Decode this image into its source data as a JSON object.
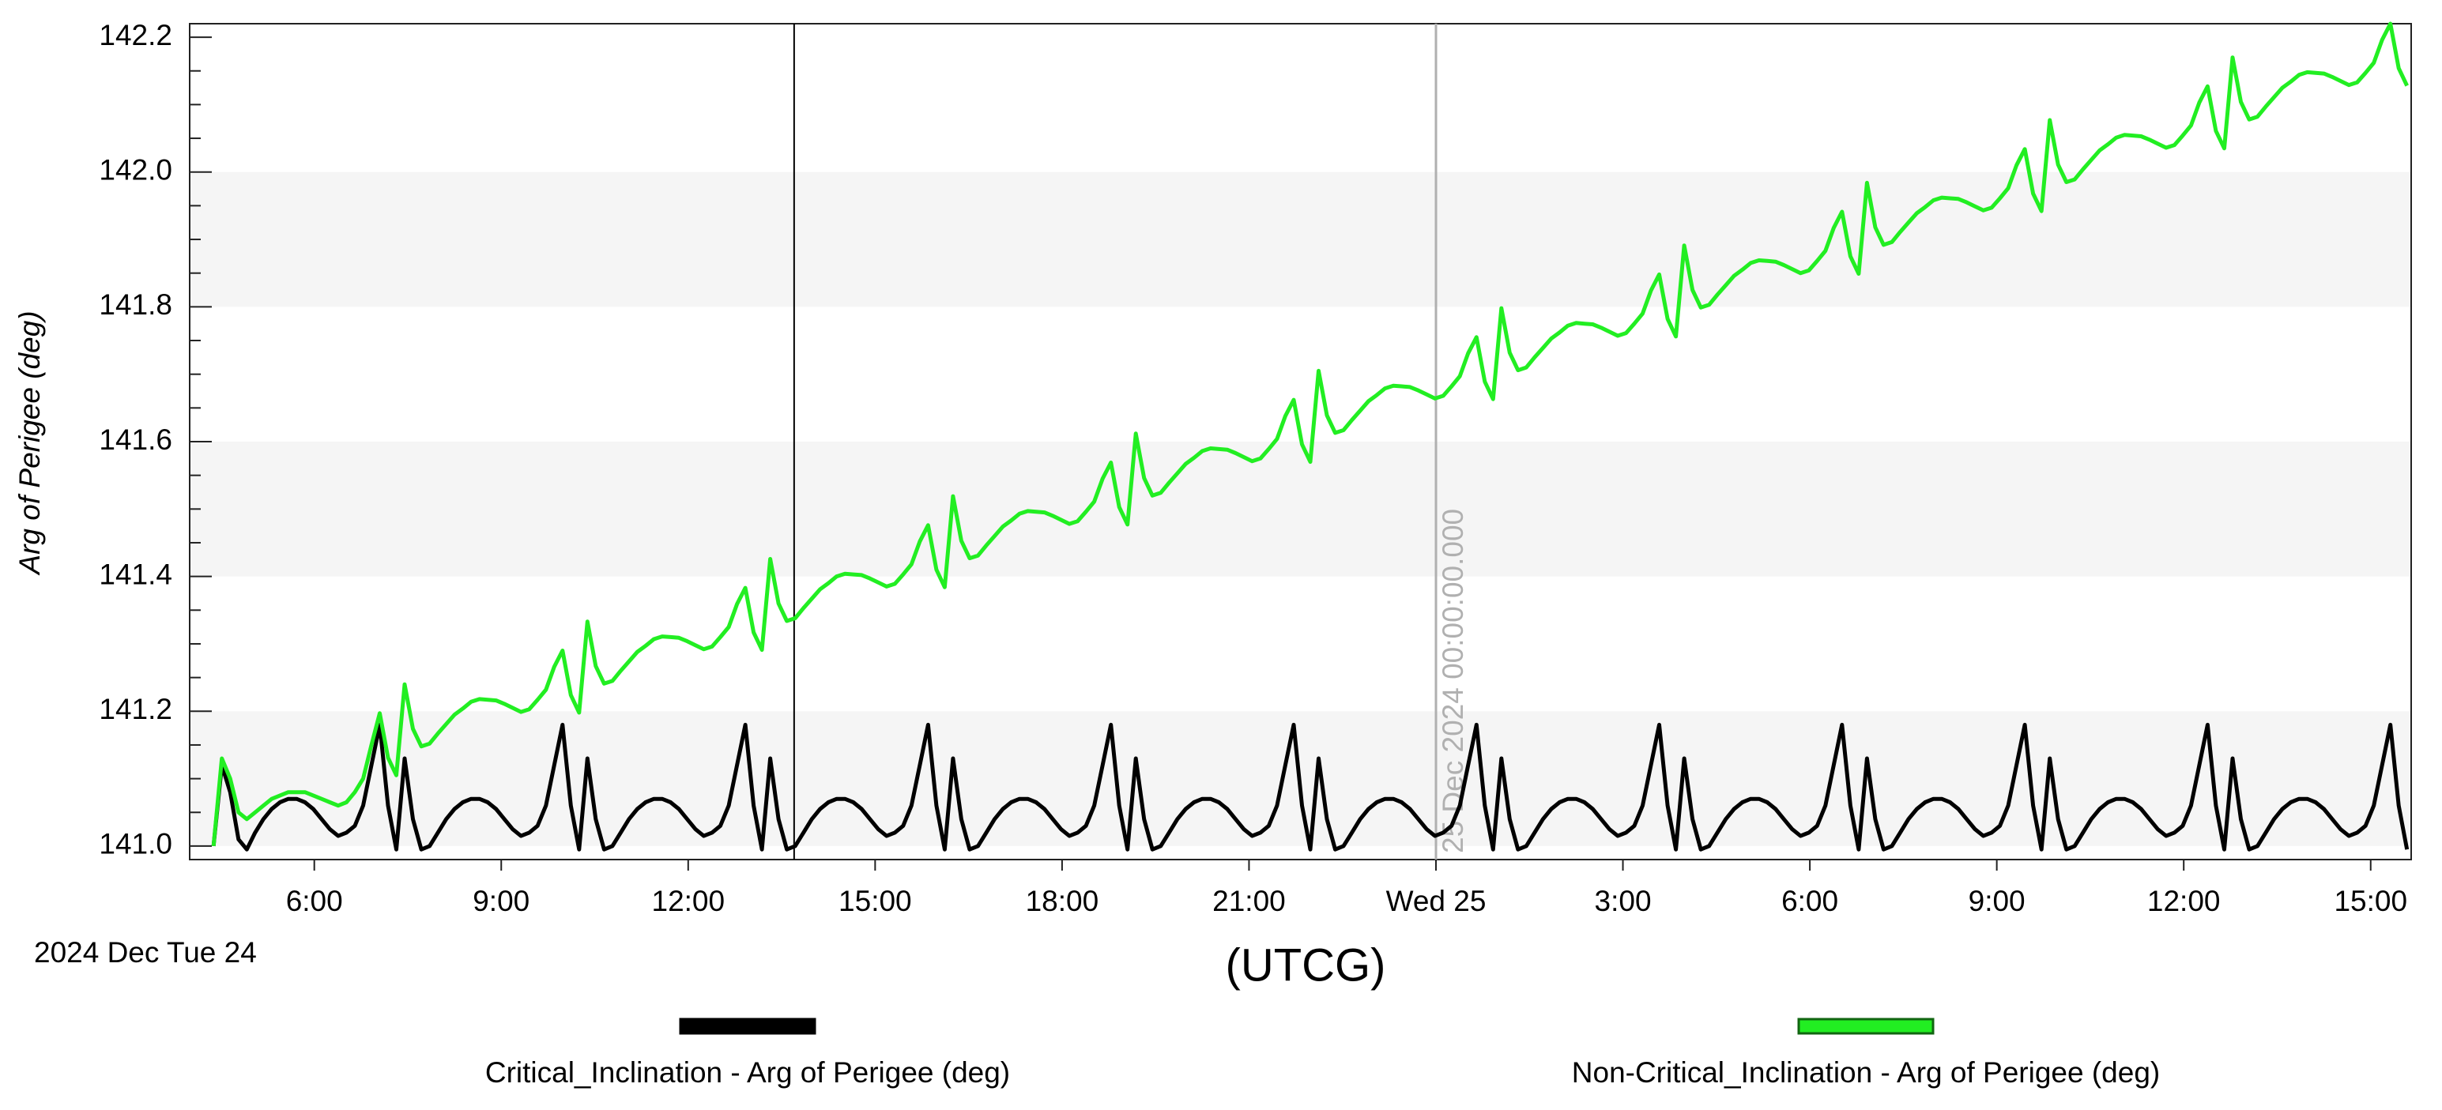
{
  "chart_data": {
    "type": "line",
    "y_label": "Arg of Perigee (deg)",
    "x_label": "(UTCG)",
    "x_date_label": "2024 Dec Tue 24",
    "xlim": [
      "2024-12-24T04:00",
      "2024-12-25T15:39"
    ],
    "xticks": [
      {
        "value": "2024-12-24T06:00",
        "label": "6:00"
      },
      {
        "value": "2024-12-24T09:00",
        "label": "9:00"
      },
      {
        "value": "2024-12-24T12:00",
        "label": "12:00"
      },
      {
        "value": "2024-12-24T15:00",
        "label": "15:00"
      },
      {
        "value": "2024-12-24T18:00",
        "label": "18:00"
      },
      {
        "value": "2024-12-24T21:00",
        "label": "21:00"
      },
      {
        "value": "2024-12-25T00:00",
        "label": "Wed 25"
      },
      {
        "value": "2024-12-25T03:00",
        "label": "3:00"
      },
      {
        "value": "2024-12-25T06:00",
        "label": "6:00"
      },
      {
        "value": "2024-12-25T09:00",
        "label": "9:00"
      },
      {
        "value": "2024-12-25T12:00",
        "label": "12:00"
      },
      {
        "value": "2024-12-25T15:00",
        "label": "15:00"
      }
    ],
    "ylim": [
      140.98,
      142.22
    ],
    "yticks": [
      {
        "value": 141,
        "label": "141.0"
      },
      141.2,
      141.4,
      141.6,
      141.8,
      {
        "value": 142,
        "label": "142.0"
      },
      142.2
    ],
    "yticks_minor": [
      141.05,
      141.1,
      141.15,
      141.25,
      141.3,
      141.35,
      141.45,
      141.5,
      141.55,
      141.65,
      141.7,
      141.75,
      141.85,
      141.9,
      141.95,
      142.05,
      142.1,
      142.15
    ],
    "grid_bands": true,
    "cursor_x": "2024-12-24T13:42",
    "annotations": [
      {
        "x": "2024-12-25T00:00",
        "label": "25 Dec 2024 00:00:00.000"
      }
    ],
    "legend": "bottom",
    "x": [
      "2024-12-24T04:23",
      "2024-12-24T04:31",
      "2024-12-24T04:39",
      "2024-12-24T04:47",
      "2024-12-24T04:55",
      "2024-12-24T05:03",
      "2024-12-24T05:11",
      "2024-12-24T05:19",
      "2024-12-24T05:27",
      "2024-12-24T05:35",
      "2024-12-24T05:43",
      "2024-12-24T05:51",
      "2024-12-24T05:59",
      "2024-12-24T06:07",
      "2024-12-24T06:15",
      "2024-12-24T06:23",
      "2024-12-24T06:31",
      "2024-12-24T06:39",
      "2024-12-24T06:47",
      "2024-12-24T06:55",
      "2024-12-24T07:03",
      "2024-12-24T07:11",
      "2024-12-24T07:19",
      "2024-12-24T07:27",
      "2024-12-24T07:35",
      "2024-12-24T07:43",
      "2024-12-24T07:51",
      "2024-12-24T07:59",
      "2024-12-24T08:07",
      "2024-12-24T08:15",
      "2024-12-24T08:23",
      "2024-12-24T08:31",
      "2024-12-24T08:39",
      "2024-12-24T08:47",
      "2024-12-24T08:55",
      "2024-12-24T09:03",
      "2024-12-24T09:11",
      "2024-12-24T09:19",
      "2024-12-24T09:27",
      "2024-12-24T09:35",
      "2024-12-24T09:43",
      "2024-12-24T09:51",
      "2024-12-24T09:59",
      "2024-12-24T10:07",
      "2024-12-24T10:15",
      "2024-12-24T10:23",
      "2024-12-24T10:31",
      "2024-12-24T10:39",
      "2024-12-24T10:47",
      "2024-12-24T10:55",
      "2024-12-24T11:03",
      "2024-12-24T11:11",
      "2024-12-24T11:19",
      "2024-12-24T11:27",
      "2024-12-24T11:35",
      "2024-12-24T11:43",
      "2024-12-24T11:51",
      "2024-12-24T11:59",
      "2024-12-24T12:07",
      "2024-12-24T12:15",
      "2024-12-24T12:23",
      "2024-12-24T12:31",
      "2024-12-24T12:39",
      "2024-12-24T12:47",
      "2024-12-24T12:55",
      "2024-12-24T13:03",
      "2024-12-24T13:11",
      "2024-12-24T13:19",
      "2024-12-24T13:27",
      "2024-12-24T13:35",
      "2024-12-24T13:43",
      "2024-12-24T13:51",
      "2024-12-24T13:59",
      "2024-12-24T14:07",
      "2024-12-24T14:15",
      "2024-12-24T14:23",
      "2024-12-24T14:31",
      "2024-12-24T14:39",
      "2024-12-24T14:47",
      "2024-12-24T14:55",
      "2024-12-24T15:03",
      "2024-12-24T15:11",
      "2024-12-24T15:19",
      "2024-12-24T15:27",
      "2024-12-24T15:35",
      "2024-12-24T15:43",
      "2024-12-24T15:51",
      "2024-12-24T15:59",
      "2024-12-24T16:07",
      "2024-12-24T16:15",
      "2024-12-24T16:23",
      "2024-12-24T16:31",
      "2024-12-24T16:39",
      "2024-12-24T16:47",
      "2024-12-24T16:55",
      "2024-12-24T17:03",
      "2024-12-24T17:11",
      "2024-12-24T17:19",
      "2024-12-24T17:27",
      "2024-12-24T17:35",
      "2024-12-24T17:43",
      "2024-12-24T17:51",
      "2024-12-24T17:59",
      "2024-12-24T18:07",
      "2024-12-24T18:15",
      "2024-12-24T18:23",
      "2024-12-24T18:31",
      "2024-12-24T18:39",
      "2024-12-24T18:47",
      "2024-12-24T18:55",
      "2024-12-24T19:03",
      "2024-12-24T19:11",
      "2024-12-24T19:19",
      "2024-12-24T19:27",
      "2024-12-24T19:35",
      "2024-12-24T19:43",
      "2024-12-24T19:51",
      "2024-12-24T19:59",
      "2024-12-24T20:07",
      "2024-12-24T20:15",
      "2024-12-24T20:23",
      "2024-12-24T20:31",
      "2024-12-24T20:39",
      "2024-12-24T20:47",
      "2024-12-24T20:55",
      "2024-12-24T21:03",
      "2024-12-24T21:11",
      "2024-12-24T21:19",
      "2024-12-24T21:27",
      "2024-12-24T21:35",
      "2024-12-24T21:43",
      "2024-12-24T21:51",
      "2024-12-24T21:59",
      "2024-12-24T22:07",
      "2024-12-24T22:15",
      "2024-12-24T22:23",
      "2024-12-24T22:31",
      "2024-12-24T22:39",
      "2024-12-24T22:47",
      "2024-12-24T22:55",
      "2024-12-24T23:03",
      "2024-12-24T23:11",
      "2024-12-24T23:19",
      "2024-12-24T23:27",
      "2024-12-24T23:35",
      "2024-12-24T23:43",
      "2024-12-24T23:51",
      "2024-12-24T23:59",
      "2024-12-25T00:07",
      "2024-12-25T00:15",
      "2024-12-25T00:23",
      "2024-12-25T00:31",
      "2024-12-25T00:39",
      "2024-12-25T00:47",
      "2024-12-25T00:55",
      "2024-12-25T01:03",
      "2024-12-25T01:11",
      "2024-12-25T01:19",
      "2024-12-25T01:27",
      "2024-12-25T01:35",
      "2024-12-25T01:43",
      "2024-12-25T01:51",
      "2024-12-25T01:59",
      "2024-12-25T02:07",
      "2024-12-25T02:15",
      "2024-12-25T02:23",
      "2024-12-25T02:31",
      "2024-12-25T02:39",
      "2024-12-25T02:47",
      "2024-12-25T02:55",
      "2024-12-25T03:03",
      "2024-12-25T03:11",
      "2024-12-25T03:19",
      "2024-12-25T03:27",
      "2024-12-25T03:35",
      "2024-12-25T03:43",
      "2024-12-25T03:51",
      "2024-12-25T03:59",
      "2024-12-25T04:07",
      "2024-12-25T04:15",
      "2024-12-25T04:23",
      "2024-12-25T04:31",
      "2024-12-25T04:39",
      "2024-12-25T04:47",
      "2024-12-25T04:55",
      "2024-12-25T05:03",
      "2024-12-25T05:11",
      "2024-12-25T05:19",
      "2024-12-25T05:27",
      "2024-12-25T05:35",
      "2024-12-25T05:43",
      "2024-12-25T05:51",
      "2024-12-25T05:59",
      "2024-12-25T06:07",
      "2024-12-25T06:15",
      "2024-12-25T06:23",
      "2024-12-25T06:31",
      "2024-12-25T06:39",
      "2024-12-25T06:47",
      "2024-12-25T06:55",
      "2024-12-25T07:03",
      "2024-12-25T07:11",
      "2024-12-25T07:19",
      "2024-12-25T07:27",
      "2024-12-25T07:35",
      "2024-12-25T07:43",
      "2024-12-25T07:51",
      "2024-12-25T07:59",
      "2024-12-25T08:07",
      "2024-12-25T08:15",
      "2024-12-25T08:23",
      "2024-12-25T08:31",
      "2024-12-25T08:39",
      "2024-12-25T08:47",
      "2024-12-25T08:55",
      "2024-12-25T09:03",
      "2024-12-25T09:11",
      "2024-12-25T09:19",
      "2024-12-25T09:27",
      "2024-12-25T09:35",
      "2024-12-25T09:43",
      "2024-12-25T09:51",
      "2024-12-25T09:59",
      "2024-12-25T10:07",
      "2024-12-25T10:15",
      "2024-12-25T10:23",
      "2024-12-25T10:31",
      "2024-12-25T10:39",
      "2024-12-25T10:47",
      "2024-12-25T10:55",
      "2024-12-25T11:03",
      "2024-12-25T11:11",
      "2024-12-25T11:19",
      "2024-12-25T11:27",
      "2024-12-25T11:35",
      "2024-12-25T11:43",
      "2024-12-25T11:51",
      "2024-12-25T11:59",
      "2024-12-25T12:07",
      "2024-12-25T12:15",
      "2024-12-25T12:23",
      "2024-12-25T12:31",
      "2024-12-25T12:39",
      "2024-12-25T12:47",
      "2024-12-25T12:55",
      "2024-12-25T13:03",
      "2024-12-25T13:11",
      "2024-12-25T13:19",
      "2024-12-25T13:27",
      "2024-12-25T13:35",
      "2024-12-25T13:43",
      "2024-12-25T13:51",
      "2024-12-25T13:59",
      "2024-12-25T14:07",
      "2024-12-25T14:15",
      "2024-12-25T14:23",
      "2024-12-25T14:31",
      "2024-12-25T14:39",
      "2024-12-25T14:47",
      "2024-12-25T14:55",
      "2024-12-25T15:03",
      "2024-12-25T15:11",
      "2024-12-25T15:19",
      "2024-12-25T15:27",
      "2024-12-25T15:35"
    ],
    "series": [
      {
        "name": "Critical_Inclination - Arg of Perigee (deg)",
        "color": "#000000",
        "values": [
          141.0,
          141.12,
          141.08,
          141.01,
          140.995,
          141.02,
          141.04,
          141.055,
          141.065,
          141.07,
          141.07,
          141.065,
          141.055,
          141.04,
          141.025,
          141.015,
          141.02,
          141.03,
          141.06,
          141.12,
          141.18,
          141.06,
          140.995,
          141.13,
          141.04,
          140.995,
          141.0,
          141.02,
          141.04,
          141.055,
          141.065,
          141.07,
          141.07,
          141.065,
          141.055,
          141.04,
          141.025,
          141.015,
          141.02,
          141.03,
          141.06,
          141.12,
          141.18,
          141.06,
          140.995,
          141.13,
          141.04,
          140.995,
          141.0,
          141.02,
          141.04,
          141.055,
          141.065,
          141.07,
          141.07,
          141.065,
          141.055,
          141.04,
          141.025,
          141.015,
          141.02,
          141.03,
          141.06,
          141.12,
          141.18,
          141.06,
          140.995,
          141.13,
          141.04,
          140.995,
          141.0,
          141.02,
          141.04,
          141.055,
          141.065,
          141.07,
          141.07,
          141.065,
          141.055,
          141.04,
          141.025,
          141.015,
          141.02,
          141.03,
          141.06,
          141.12,
          141.18,
          141.06,
          140.995,
          141.13,
          141.04,
          140.995,
          141.0,
          141.02,
          141.04,
          141.055,
          141.065,
          141.07,
          141.07,
          141.065,
          141.055,
          141.04,
          141.025,
          141.015,
          141.02,
          141.03,
          141.06,
          141.12,
          141.18,
          141.06,
          140.995,
          141.13,
          141.04,
          140.995,
          141.0,
          141.02,
          141.04,
          141.055,
          141.065,
          141.07,
          141.07,
          141.065,
          141.055,
          141.04,
          141.025,
          141.015,
          141.02,
          141.03,
          141.06,
          141.12,
          141.18,
          141.06,
          140.995,
          141.13,
          141.04,
          140.995,
          141.0,
          141.02,
          141.04,
          141.055,
          141.065,
          141.07,
          141.07,
          141.065,
          141.055,
          141.04,
          141.025,
          141.015,
          141.02,
          141.03,
          141.06,
          141.12,
          141.18,
          141.06,
          140.995,
          141.13,
          141.04,
          140.995,
          141.0,
          141.02,
          141.04,
          141.055,
          141.065,
          141.07,
          141.07,
          141.065,
          141.055,
          141.04,
          141.025,
          141.015,
          141.02,
          141.03,
          141.06,
          141.12,
          141.18,
          141.06,
          140.995,
          141.13,
          141.04,
          140.995,
          141.0,
          141.02,
          141.04,
          141.055,
          141.065,
          141.07,
          141.07,
          141.065,
          141.055,
          141.04,
          141.025,
          141.015,
          141.02,
          141.03,
          141.06,
          141.12,
          141.18,
          141.06,
          140.995,
          141.13,
          141.04,
          140.995,
          141.0,
          141.02,
          141.04,
          141.055,
          141.065,
          141.07,
          141.07,
          141.065,
          141.055,
          141.04,
          141.025,
          141.015,
          141.02,
          141.03,
          141.06,
          141.12,
          141.18,
          141.06,
          140.995,
          141.13,
          141.04,
          140.995,
          141.0,
          141.02,
          141.04,
          141.055,
          141.065,
          141.07,
          141.07,
          141.065,
          141.055,
          141.04,
          141.025,
          141.015,
          141.02,
          141.03,
          141.06,
          141.12,
          141.18,
          141.06,
          140.995,
          141.13,
          141.04,
          140.995,
          141.0,
          141.02,
          141.04,
          141.055,
          141.065,
          141.07,
          141.07,
          141.065,
          141.055,
          141.04,
          141.025,
          141.015,
          141.02,
          141.03,
          141.06,
          141.12,
          141.18,
          141.06,
          140.995
        ]
      },
      {
        "name": "Non-Critical_Inclination - Arg of Perigee (deg)",
        "color": "#22ee22",
        "values": [
          141.0,
          141.13,
          141.1,
          141.05,
          141.04,
          141.05,
          141.06,
          141.07,
          141.075,
          141.08,
          141.08,
          141.08,
          141.075,
          141.07,
          141.065,
          141.06,
          141.065,
          141.08,
          141.1,
          141.15,
          141.197,
          141.131,
          141.105,
          141.24,
          141.174,
          141.148,
          141.152,
          141.167,
          141.181,
          141.195,
          141.204,
          141.214,
          141.218,
          141.217,
          141.216,
          141.211,
          141.205,
          141.199,
          141.203,
          141.217,
          141.232,
          141.266,
          141.29,
          141.224,
          141.198,
          141.333,
          141.267,
          141.241,
          141.245,
          141.26,
          141.274,
          141.288,
          141.297,
          141.307,
          141.311,
          141.31,
          141.309,
          141.304,
          141.298,
          141.292,
          141.296,
          141.31,
          141.325,
          141.359,
          141.383,
          141.317,
          141.291,
          141.426,
          141.36,
          141.334,
          141.338,
          141.353,
          141.367,
          141.381,
          141.39,
          141.4,
          141.404,
          141.403,
          141.402,
          141.397,
          141.391,
          141.385,
          141.389,
          141.403,
          141.418,
          141.452,
          141.476,
          141.41,
          141.384,
          141.519,
          141.453,
          141.427,
          141.431,
          141.446,
          141.46,
          141.474,
          141.483,
          141.493,
          141.497,
          141.496,
          141.495,
          141.49,
          141.484,
          141.478,
          141.482,
          141.496,
          141.511,
          141.545,
          141.569,
          141.503,
          141.477,
          141.612,
          141.546,
          141.52,
          141.524,
          141.539,
          141.553,
          141.567,
          141.576,
          141.586,
          141.59,
          141.589,
          141.588,
          141.583,
          141.577,
          141.571,
          141.575,
          141.589,
          141.604,
          141.638,
          141.662,
          141.596,
          141.57,
          141.705,
          141.639,
          141.613,
          141.617,
          141.632,
          141.646,
          141.66,
          141.669,
          141.679,
          141.683,
          141.682,
          141.681,
          141.676,
          141.67,
          141.664,
          141.668,
          141.682,
          141.697,
          141.731,
          141.755,
          141.689,
          141.663,
          141.798,
          141.732,
          141.706,
          141.71,
          141.725,
          141.739,
          141.753,
          141.762,
          141.772,
          141.776,
          141.775,
          141.774,
          141.769,
          141.763,
          141.757,
          141.761,
          141.775,
          141.79,
          141.824,
          141.848,
          141.782,
          141.756,
          141.891,
          141.825,
          141.799,
          141.803,
          141.818,
          141.832,
          141.846,
          141.855,
          141.865,
          141.869,
          141.868,
          141.867,
          141.862,
          141.856,
          141.85,
          141.854,
          141.868,
          141.883,
          141.917,
          141.941,
          141.875,
          141.849,
          141.984,
          141.918,
          141.892,
          141.896,
          141.911,
          141.925,
          141.939,
          141.948,
          141.958,
          141.962,
          141.961,
          141.96,
          141.955,
          141.949,
          141.943,
          141.947,
          141.961,
          141.976,
          142.01,
          142.034,
          141.968,
          141.942,
          142.077,
          142.011,
          141.985,
          141.989,
          142.004,
          142.018,
          142.032,
          142.041,
          142.051,
          142.055,
          142.054,
          142.053,
          142.048,
          142.042,
          142.036,
          142.04,
          142.054,
          142.069,
          142.103,
          142.127,
          142.061,
          142.035,
          142.17,
          142.104,
          142.078,
          142.082,
          142.097,
          142.111,
          142.125,
          142.134,
          142.144,
          142.148,
          142.147,
          142.146,
          142.141,
          142.135,
          142.129,
          142.133,
          142.147,
          142.162,
          142.196,
          142.22,
          142.154,
          142.128
        ]
      }
    ]
  }
}
